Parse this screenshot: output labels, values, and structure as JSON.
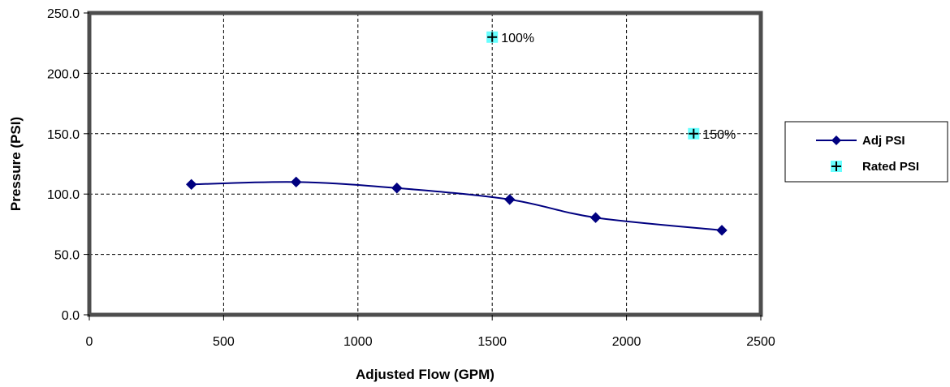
{
  "chart_data": {
    "type": "line",
    "xlabel": "Adjusted Flow (GPM)",
    "ylabel": "Pressure (PSI)",
    "xlim": [
      0,
      2500
    ],
    "ylim": [
      0,
      250
    ],
    "x_ticks": [
      "0",
      "500",
      "1000",
      "1500",
      "2000",
      "2500"
    ],
    "y_ticks": [
      "0.0",
      "50.0",
      "100.0",
      "150.0",
      "200.0",
      "250.0"
    ],
    "grid": true,
    "legend_position": "right",
    "series": [
      {
        "name": "Adj PSI",
        "color": "#000080",
        "marker": "diamond",
        "smooth": true,
        "points": [
          {
            "x": 380,
            "y": 108
          },
          {
            "x": 770,
            "y": 110
          },
          {
            "x": 1145,
            "y": 105
          },
          {
            "x": 1565,
            "y": 95.5
          },
          {
            "x": 1885,
            "y": 80.5
          },
          {
            "x": 2355,
            "y": 70
          }
        ]
      },
      {
        "name": "Rated PSI",
        "color": "#000000",
        "marker_bg": "#66ffff",
        "marker": "plus",
        "points": [
          {
            "x": 1500,
            "y": 230,
            "label": "100%"
          },
          {
            "x": 2250,
            "y": 150,
            "label": "150%"
          }
        ]
      }
    ]
  }
}
